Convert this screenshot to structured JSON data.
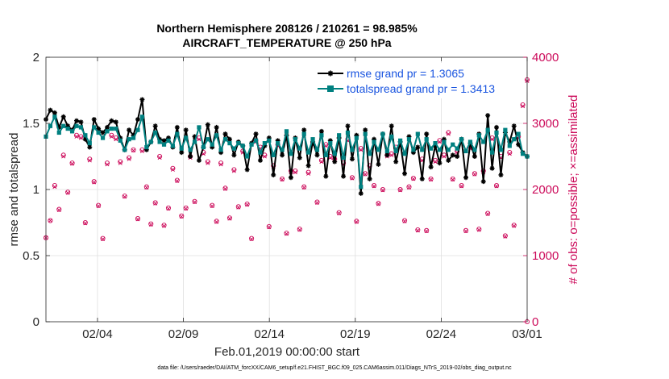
{
  "chart_data": {
    "type": "line",
    "title_line1": "Northern Hemisphere 208126 / 210261 = 98.985%",
    "title_line2": "AIRCRAFT_TEMPERATURE @ 250 hPa",
    "xlabel": "Feb.01,2019 00:00:00 start",
    "ylabel_left": "rmse and totalspread",
    "ylabel_right": "# of obs: o=possible; ×=assimilated",
    "x_ticks": [
      "02/04",
      "02/09",
      "02/14",
      "02/19",
      "02/24",
      "03/01"
    ],
    "x_tick_days": [
      3,
      8,
      13,
      18,
      23,
      28
    ],
    "xlim_days": [
      0,
      28
    ],
    "y_left_ticks": [
      "0",
      "0.5",
      "1",
      "1.5",
      "2"
    ],
    "ylim_left": [
      0,
      2
    ],
    "y_right_ticks": [
      "0",
      "1000",
      "2000",
      "3000",
      "4000"
    ],
    "ylim_right": [
      0,
      4000
    ],
    "series": [
      {
        "name": "rmse grand pr = 1.3065",
        "color": "#000000",
        "values": [
          1.53,
          1.6,
          1.58,
          1.47,
          1.55,
          1.48,
          1.45,
          1.52,
          1.51,
          1.38,
          1.32,
          1.53,
          1.46,
          1.43,
          1.47,
          1.52,
          1.51,
          1.39,
          1.3,
          1.45,
          1.41,
          1.53,
          1.68,
          1.3,
          1.36,
          1.48,
          1.38,
          1.37,
          1.39,
          1.32,
          1.47,
          1.28,
          1.45,
          1.25,
          1.4,
          1.22,
          1.32,
          1.49,
          1.32,
          1.47,
          1.28,
          1.42,
          1.38,
          1.26,
          1.36,
          1.33,
          1.15,
          1.35,
          1.42,
          1.22,
          1.33,
          1.39,
          1.11,
          1.37,
          1.26,
          1.41,
          1.09,
          1.39,
          1.24,
          1.45,
          1.18,
          1.36,
          1.26,
          1.44,
          1.1,
          1.37,
          1.21,
          1.39,
          1.1,
          1.48,
          1.23,
          1.41,
          0.97,
          1.45,
          1.08,
          1.38,
          1.19,
          1.42,
          1.26,
          1.48,
          1.21,
          1.36,
          1.12,
          1.4,
          1.28,
          1.32,
          1.08,
          1.42,
          1.17,
          1.33,
          1.2,
          1.38,
          1.22,
          1.26,
          1.25,
          1.38,
          1.09,
          1.35,
          1.25,
          1.42,
          1.06,
          1.56,
          1.16,
          1.47,
          1.11,
          1.43,
          1.36,
          1.48,
          1.34,
          1.28,
          1.25
        ],
        "grand": "1.3065"
      },
      {
        "name": "totalspread grand pr = 1.3413",
        "color": "#008080",
        "values": [
          1.4,
          1.48,
          1.55,
          1.43,
          1.48,
          1.46,
          1.44,
          1.48,
          1.47,
          1.41,
          1.35,
          1.47,
          1.43,
          1.39,
          1.44,
          1.46,
          1.46,
          1.37,
          1.3,
          1.38,
          1.39,
          1.45,
          1.55,
          1.32,
          1.36,
          1.43,
          1.36,
          1.34,
          1.37,
          1.33,
          1.42,
          1.31,
          1.39,
          1.3,
          1.36,
          1.47,
          1.32,
          1.38,
          1.34,
          1.41,
          1.3,
          1.38,
          1.35,
          1.31,
          1.35,
          1.33,
          1.25,
          1.34,
          1.37,
          1.28,
          1.35,
          1.37,
          1.26,
          1.35,
          1.3,
          1.44,
          1.27,
          1.38,
          1.31,
          1.42,
          1.28,
          1.38,
          1.3,
          1.41,
          1.26,
          1.35,
          1.27,
          1.41,
          1.24,
          1.43,
          1.3,
          1.39,
          1.02,
          1.42,
          1.27,
          1.36,
          1.3,
          1.42,
          1.29,
          1.4,
          1.29,
          1.37,
          1.27,
          1.38,
          1.3,
          1.42,
          1.3,
          1.38,
          1.31,
          1.35,
          1.3,
          1.36,
          1.3,
          1.34,
          1.31,
          1.38,
          1.29,
          1.36,
          1.3,
          1.41,
          1.36,
          1.45,
          1.28,
          1.43,
          1.3,
          1.45,
          1.33,
          1.38,
          1.42,
          1.27,
          1.25
        ],
        "grand": "1.3413"
      }
    ],
    "obs_possible": [
      1270,
      1530,
      2060,
      1700,
      2520,
      1960,
      2400,
      2820,
      2800,
      1500,
      2460,
      2120,
      1760,
      1260,
      2400,
      2820,
      2780,
      2420,
      1900,
      2480,
      2600,
      1560,
      2600,
      2040,
      1480,
      1800,
      2500,
      1460,
      1720,
      2320,
      2140,
      1600,
      1720,
      2500,
      1820,
      2780,
      2560,
      2420,
      1760,
      1520,
      2400,
      2020,
      1570,
      2300,
      1740,
      2580,
      1780,
      1260,
      2740,
      2640,
      2520,
      1440,
      2360,
      2680,
      2160,
      1340,
      2280,
      2280,
      1400,
      2040,
      2260,
      2700,
      1810,
      2440,
      2680,
      2500,
      2460,
      1650,
      2400,
      2760,
      2180,
      1520,
      2620,
      2240,
      2360,
      2060,
      1790,
      2000,
      2520,
      2540,
      2640,
      2000,
      1530,
      2040,
      2170,
      1390,
      2460,
      1380,
      2160,
      2440,
      2740,
      2520,
      2860,
      2160,
      2580,
      2060,
      1380,
      2640,
      2240,
      1400,
      2280,
      1640,
      2780,
      2060,
      2500,
      1300,
      2560,
      1460,
      2800,
      3280,
      3660
    ],
    "obs_assimilated": [
      1270,
      1530,
      2040,
      1690,
      2500,
      1950,
      2390,
      2800,
      2780,
      1490,
      2440,
      2110,
      1750,
      1250,
      2380,
      2800,
      2760,
      2400,
      1890,
      2460,
      2590,
      1550,
      2580,
      2030,
      1470,
      1790,
      2480,
      1450,
      1710,
      2300,
      2130,
      1590,
      1710,
      2480,
      1810,
      2760,
      2540,
      2400,
      1750,
      1510,
      2380,
      2010,
      1560,
      2280,
      1730,
      2560,
      1770,
      1250,
      2720,
      2620,
      2500,
      1430,
      2340,
      2660,
      2150,
      1330,
      2260,
      2260,
      1390,
      2030,
      2240,
      2680,
      1800,
      2420,
      2660,
      2480,
      2440,
      1640,
      2380,
      2740,
      2170,
      1510,
      2600,
      2230,
      2340,
      2050,
      1780,
      1990,
      2500,
      2520,
      2620,
      1990,
      1520,
      2030,
      2160,
      1380,
      2440,
      1370,
      2150,
      2420,
      2720,
      2500,
      2840,
      2150,
      2560,
      2050,
      1370,
      2620,
      2230,
      1390,
      2260,
      1630,
      2760,
      2050,
      2480,
      1290,
      2540,
      1450,
      2780,
      3260,
      3640
    ]
  },
  "footer": "data file: /Users/raeder/DAI/ATM_forcXX/CAM6_setup/f.e21.FHIST_BGC.f09_025.CAM6assim.011/Diags_NTrS_2019-02/obs_diag_output.nc"
}
